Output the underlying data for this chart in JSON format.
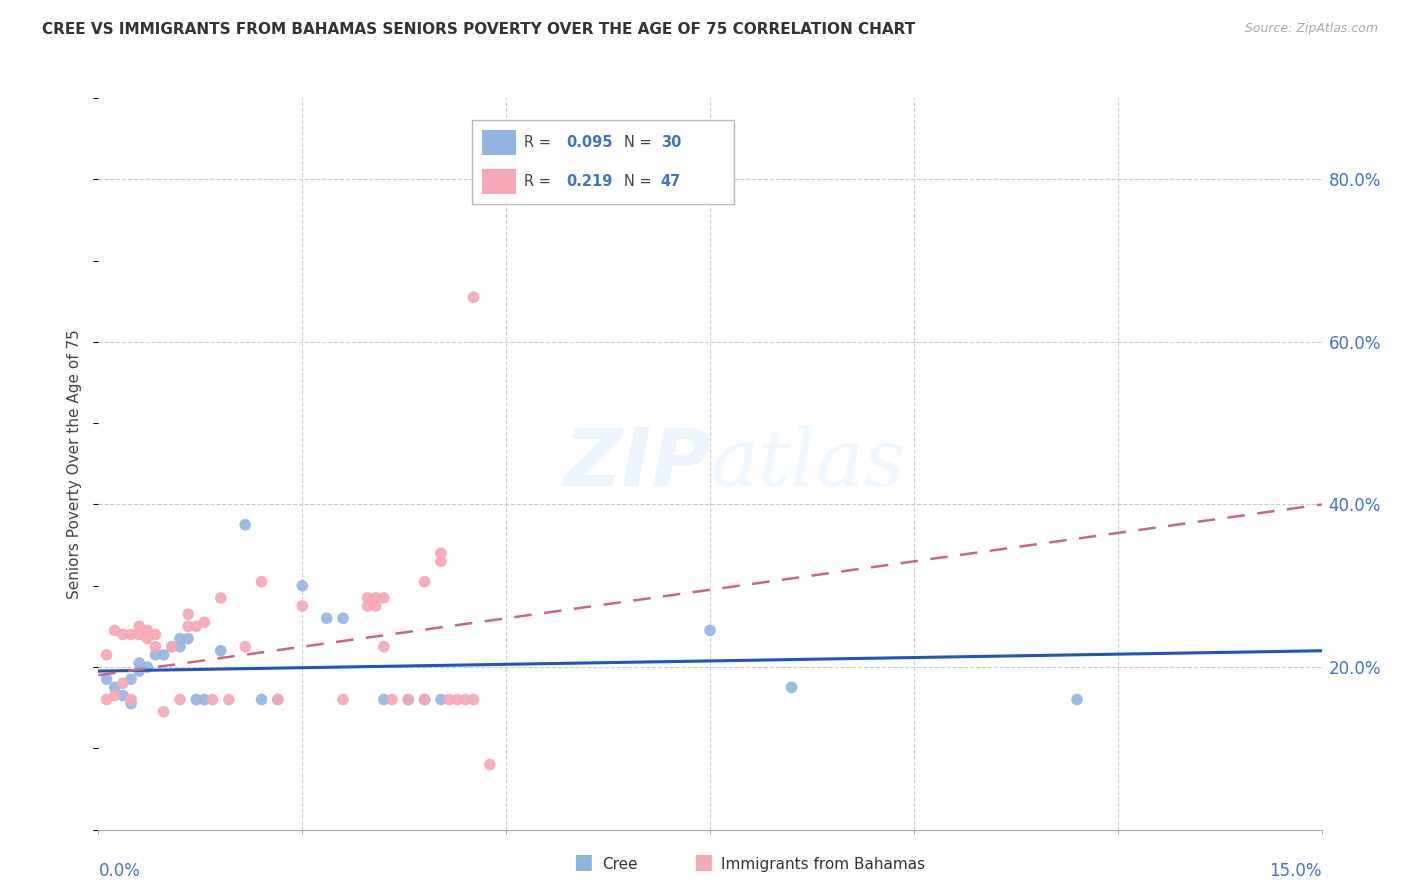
{
  "title": "CREE VS IMMIGRANTS FROM BAHAMAS SENIORS POVERTY OVER THE AGE OF 75 CORRELATION CHART",
  "source": "Source: ZipAtlas.com",
  "ylabel": "Seniors Poverty Over the Age of 75",
  "xlim": [
    0.0,
    0.15
  ],
  "ylim": [
    0.0,
    0.9
  ],
  "cree_color": "#92b4e3",
  "bahamas_color": "#f4a7b5",
  "cree_line_color": "#2255bb",
  "bahamas_line_color": "#cc6680",
  "legend_r_cree": "0.095",
  "legend_n_cree": "30",
  "legend_r_bahamas": "0.219",
  "legend_n_bahamas": "47",
  "cree_x": [
    0.001,
    0.002,
    0.003,
    0.004,
    0.004,
    0.005,
    0.005,
    0.006,
    0.007,
    0.008,
    0.009,
    0.01,
    0.01,
    0.011,
    0.012,
    0.013,
    0.015,
    0.018,
    0.02,
    0.022,
    0.025,
    0.028,
    0.03,
    0.035,
    0.038,
    0.04,
    0.042,
    0.075,
    0.085,
    0.12
  ],
  "cree_y": [
    0.185,
    0.175,
    0.165,
    0.155,
    0.185,
    0.195,
    0.205,
    0.2,
    0.215,
    0.215,
    0.225,
    0.225,
    0.235,
    0.235,
    0.16,
    0.16,
    0.22,
    0.375,
    0.16,
    0.16,
    0.3,
    0.26,
    0.26,
    0.16,
    0.16,
    0.16,
    0.16,
    0.245,
    0.175,
    0.16
  ],
  "bah_x": [
    0.001,
    0.001,
    0.002,
    0.002,
    0.003,
    0.003,
    0.004,
    0.004,
    0.005,
    0.005,
    0.006,
    0.006,
    0.007,
    0.007,
    0.008,
    0.009,
    0.01,
    0.011,
    0.011,
    0.012,
    0.013,
    0.014,
    0.015,
    0.016,
    0.018,
    0.02,
    0.022,
    0.025,
    0.03,
    0.033,
    0.033,
    0.034,
    0.034,
    0.035,
    0.035,
    0.036,
    0.038,
    0.04,
    0.04,
    0.042,
    0.042,
    0.043,
    0.044,
    0.045,
    0.046,
    0.046,
    0.048
  ],
  "bah_y": [
    0.16,
    0.215,
    0.165,
    0.245,
    0.18,
    0.24,
    0.16,
    0.24,
    0.24,
    0.25,
    0.235,
    0.245,
    0.225,
    0.24,
    0.145,
    0.225,
    0.16,
    0.25,
    0.265,
    0.25,
    0.255,
    0.16,
    0.285,
    0.16,
    0.225,
    0.305,
    0.16,
    0.275,
    0.16,
    0.285,
    0.275,
    0.285,
    0.275,
    0.285,
    0.225,
    0.16,
    0.16,
    0.305,
    0.16,
    0.34,
    0.33,
    0.16,
    0.16,
    0.16,
    0.655,
    0.16,
    0.08
  ]
}
